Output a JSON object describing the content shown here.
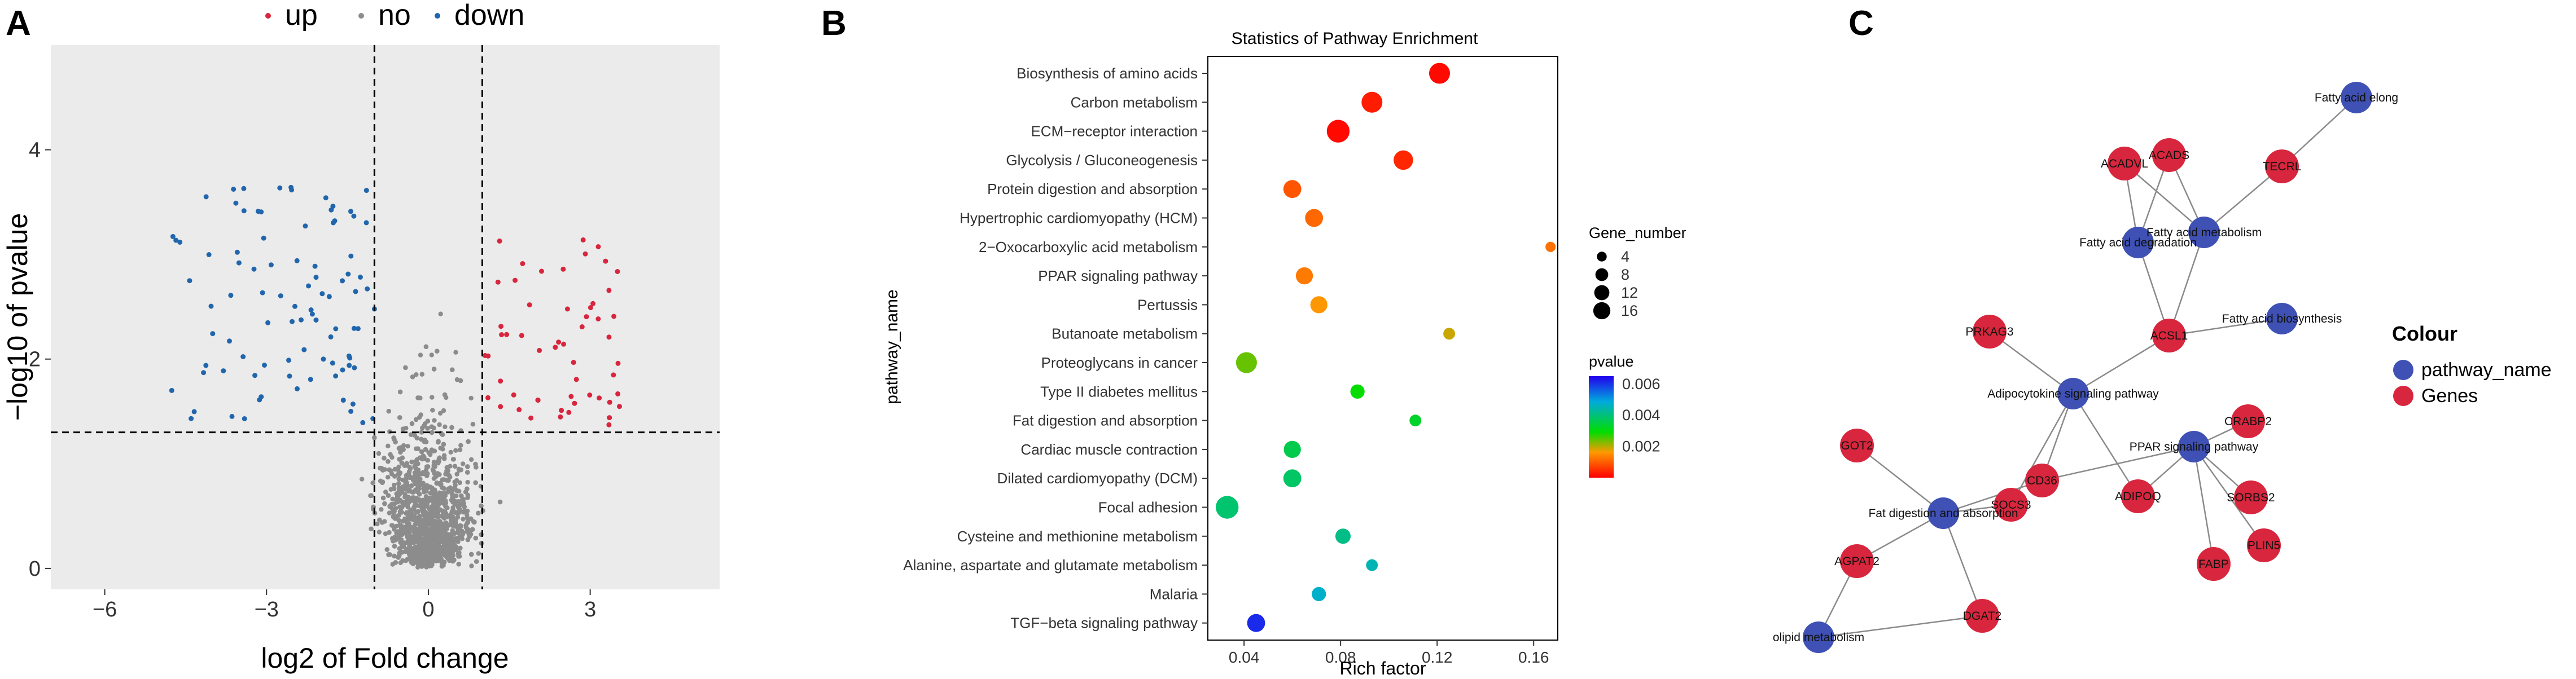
{
  "panels": {
    "a": "A",
    "b": "B",
    "c": "C"
  },
  "colors": {
    "up": "#d7263d",
    "no": "#8c8c8c",
    "down": "#2166ac",
    "pathway": "#3f51b5",
    "gene": "#d7263d"
  },
  "chart_data": [
    {
      "type": "scatter",
      "title": "",
      "xlabel": "log2 of Fold change",
      "ylabel": "−log10 of pvalue",
      "xlim": [
        -7,
        5.4
      ],
      "ylim": [
        -0.2,
        5.0
      ],
      "xticks": [
        "−6",
        "−3",
        "0",
        "3"
      ],
      "xtick_values": [
        -6,
        -3,
        0,
        3
      ],
      "yticks": [
        "0",
        "2",
        "4"
      ],
      "ytick_values": [
        0,
        2,
        4
      ],
      "legend": {
        "position": "top",
        "entries": [
          "up",
          "no",
          "down"
        ]
      },
      "thresholds": {
        "log2fc": [
          -1,
          1
        ],
        "neglog10p": 1.3
      },
      "grid": false
    },
    {
      "type": "scatter",
      "title": "Statistics of Pathway Enrichment",
      "xlabel": "Rich factor",
      "ylabel": "pathway_name",
      "xlim": [
        0.025,
        0.17
      ],
      "xticks": [
        "0.04",
        "0.08",
        "0.12",
        "0.16"
      ],
      "xtick_values": [
        0.04,
        0.08,
        0.12,
        0.16
      ],
      "categories": [
        "Biosynthesis of amino acids",
        "Carbon metabolism",
        "ECM−receptor interaction",
        "Glycolysis / Gluconeogenesis",
        "Protein digestion and absorption",
        "Hypertrophic cardiomyopathy (HCM)",
        "2−Oxocarboxylic acid metabolism",
        "PPAR signaling pathway",
        "Pertussis",
        "Butanoate metabolism",
        "Proteoglycans in cancer",
        "Type II diabetes mellitus",
        "Fat digestion and absorption",
        "Cardiac muscle contraction",
        "Dilated cardiomyopathy (DCM)",
        "Focal adhesion",
        "Cysteine and methionine metabolism",
        "Alanine, aspartate and glutamate metabolism",
        "Malaria",
        "TGF−beta signaling pathway"
      ],
      "rich_factor": [
        0.121,
        0.093,
        0.079,
        0.106,
        0.06,
        0.069,
        0.167,
        0.065,
        0.071,
        0.125,
        0.041,
        0.087,
        0.111,
        0.06,
        0.06,
        0.033,
        0.081,
        0.093,
        0.071,
        0.045
      ],
      "gene_number": [
        13,
        13,
        16,
        11,
        9,
        9,
        2,
        8,
        8,
        3,
        13,
        5,
        3,
        8,
        9,
        16,
        6,
        3,
        5,
        9
      ],
      "pvalue": [
        0.0001,
        0.0003,
        0.0001,
        0.0004,
        0.0009,
        0.0011,
        0.0012,
        0.0013,
        0.0016,
        0.0019,
        0.0024,
        0.0029,
        0.0033,
        0.0036,
        0.0038,
        0.0039,
        0.0041,
        0.0045,
        0.0047,
        0.0061
      ],
      "legend_size": {
        "title": "Gene_number",
        "values": [
          4,
          8,
          12,
          16
        ],
        "labels": [
          "4",
          "8",
          "12",
          "16"
        ]
      },
      "legend_color": {
        "title": "pvalue",
        "range": [
          0.0,
          0.0065
        ],
        "ticks": [
          0.002,
          0.004,
          0.006
        ],
        "labels": [
          "0.002",
          "0.004",
          "0.006"
        ]
      }
    }
  ],
  "network": {
    "legend_title": "Colour",
    "legend_entries": [
      "pathway_name",
      "Genes"
    ],
    "nodes": [
      {
        "id": "FAE",
        "label": "Fatty acid elong",
        "type": "pathway"
      },
      {
        "id": "ACADVL",
        "label": "ACADVL",
        "type": "gene"
      },
      {
        "id": "ACADS",
        "label": "ACADS",
        "type": "gene"
      },
      {
        "id": "TECRL",
        "label": "TECRL",
        "type": "gene"
      },
      {
        "id": "FAM",
        "label": "Fatty acid metabolism",
        "type": "pathway"
      },
      {
        "id": "FAD",
        "label": "Fatty acid degradation",
        "type": "pathway"
      },
      {
        "id": "FAB",
        "label": "Fatty acid biosynthesis",
        "type": "pathway"
      },
      {
        "id": "ACSL1",
        "label": "ACSL1",
        "type": "gene"
      },
      {
        "id": "PRKAG3",
        "label": "PRKAG3",
        "type": "gene"
      },
      {
        "id": "ASP",
        "label": "Adipocytokine signaling pathway",
        "type": "pathway"
      },
      {
        "id": "CRABP2",
        "label": "CRABP2",
        "type": "gene"
      },
      {
        "id": "PPAR",
        "label": "PPAR signaling pathway",
        "type": "pathway"
      },
      {
        "id": "GOT2",
        "label": "GOT2",
        "type": "gene"
      },
      {
        "id": "CD36",
        "label": "CD36",
        "type": "gene"
      },
      {
        "id": "SORBS2",
        "label": "SORBS2",
        "type": "gene"
      },
      {
        "id": "ADIPOQ",
        "label": "ADIPOQ",
        "type": "gene"
      },
      {
        "id": "SOCS3",
        "label": "SOCS3",
        "type": "gene"
      },
      {
        "id": "FDA",
        "label": "Fat digestion and absorption",
        "type": "pathway"
      },
      {
        "id": "PLIN5",
        "label": "PLIN5",
        "type": "gene"
      },
      {
        "id": "AGPAT2",
        "label": "AGPAT2",
        "type": "gene"
      },
      {
        "id": "FABP",
        "label": "FABP",
        "type": "gene"
      },
      {
        "id": "DGAT2",
        "label": "DGAT2",
        "type": "gene"
      },
      {
        "id": "GLM",
        "label": "olipid metabolism",
        "type": "pathway"
      }
    ],
    "edges": [
      [
        "FAE",
        "TECRL"
      ],
      [
        "TECRL",
        "FAM"
      ],
      [
        "ACADVL",
        "FAM"
      ],
      [
        "ACADVL",
        "FAD"
      ],
      [
        "ACADS",
        "FAM"
      ],
      [
        "ACADS",
        "FAD"
      ],
      [
        "FAM",
        "ACSL1"
      ],
      [
        "FAD",
        "ACSL1"
      ],
      [
        "FAB",
        "ACSL1"
      ],
      [
        "ACSL1",
        "ASP"
      ],
      [
        "PRKAG3",
        "ASP"
      ],
      [
        "ASP",
        "CD36"
      ],
      [
        "ASP",
        "ADIPOQ"
      ],
      [
        "ASP",
        "SOCS3"
      ],
      [
        "PPAR",
        "CD36"
      ],
      [
        "PPAR",
        "ADIPOQ"
      ],
      [
        "PPAR",
        "CRABP2"
      ],
      [
        "PPAR",
        "SORBS2"
      ],
      [
        "PPAR",
        "PLIN5"
      ],
      [
        "PPAR",
        "FABP"
      ],
      [
        "FDA",
        "GOT2"
      ],
      [
        "FDA",
        "SOCS3"
      ],
      [
        "FDA",
        "CD36"
      ],
      [
        "FDA",
        "AGPAT2"
      ],
      [
        "FDA",
        "DGAT2"
      ],
      [
        "AGPAT2",
        "GLM"
      ],
      [
        "DGAT2",
        "GLM"
      ]
    ]
  }
}
